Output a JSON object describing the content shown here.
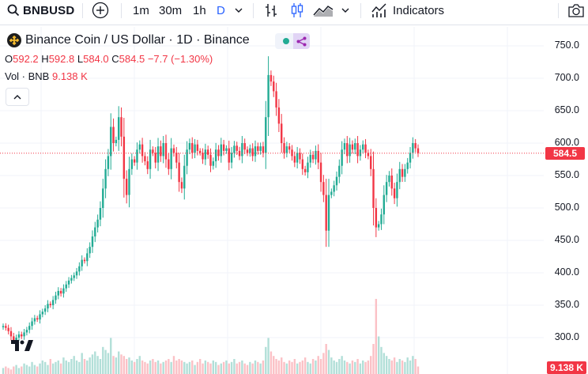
{
  "toolbar": {
    "symbol": "BNBUSD",
    "intervals": [
      "1m",
      "30m",
      "1h",
      "D"
    ],
    "active_interval": "D",
    "indicators_label": "Indicators"
  },
  "legend": {
    "title": "Binance Coin / US Dollar · 1D · Binance",
    "open_label": "O",
    "open": "592.2",
    "high_label": "H",
    "high": "592.8",
    "low_label": "L",
    "low": "584.0",
    "close_label": "C",
    "close": "584.5",
    "change": "−7.7 (−1.30%)",
    "vol_label": "Vol · BNB",
    "vol_value": "9.138 K"
  },
  "colors": {
    "up": "#22ab94",
    "down": "#f23645",
    "accent": "#2962ff",
    "grid": "#f0f3fa",
    "volume_up": "#b2dfd8",
    "volume_down": "#fbc1c6"
  },
  "chart_data": {
    "type": "candlestick",
    "title": "Binance Coin / US Dollar · 1D · Binance",
    "y_axis_labels": [
      "750.0",
      "700.0",
      "650.0",
      "600.0",
      "550.0",
      "500.0",
      "450.0",
      "400.0",
      "350.0",
      "300.0"
    ],
    "y_axis_values": [
      750,
      700,
      650,
      600,
      550,
      500,
      450,
      400,
      350,
      300
    ],
    "ylim": [
      290,
      760
    ],
    "last_price": 584.5,
    "last_price_label": "584.5",
    "last_volume_label": "9.138 K",
    "closes": [
      318,
      315,
      310,
      302,
      296,
      300,
      305,
      302,
      308,
      312,
      318,
      325,
      330,
      328,
      336,
      340,
      345,
      352,
      350,
      358,
      365,
      372,
      368,
      376,
      382,
      388,
      392,
      396,
      402,
      410,
      420,
      418,
      430,
      440,
      456,
      470,
      482,
      500,
      530,
      560,
      580,
      625,
      600,
      605,
      640,
      610,
      545,
      520,
      560,
      575,
      570,
      590,
      598,
      580,
      572,
      560,
      590,
      585,
      570,
      595,
      580,
      600,
      575,
      560,
      592,
      585,
      570,
      540,
      530,
      565,
      590,
      600,
      585,
      598,
      588,
      585,
      575,
      590,
      582,
      565,
      572,
      590,
      580,
      598,
      588,
      592,
      570,
      585,
      596,
      588,
      580,
      600,
      590,
      585,
      592,
      580,
      595,
      588,
      595,
      585,
      640,
      705,
      695,
      680,
      655,
      630,
      600,
      585,
      595,
      590,
      580,
      570,
      585,
      575,
      560,
      555,
      570,
      582,
      575,
      588,
      570,
      540,
      520,
      465,
      520,
      525,
      535,
      548,
      565,
      590,
      600,
      580,
      598,
      590,
      600,
      580,
      590,
      598,
      585,
      580,
      560,
      500,
      470,
      475,
      490,
      520,
      540,
      550,
      530,
      515,
      540,
      560,
      548,
      560,
      570,
      585,
      600,
      592,
      584.5
    ],
    "volumes": [
      4,
      5,
      4,
      3,
      5,
      6,
      4,
      5,
      7,
      6,
      5,
      8,
      6,
      5,
      7,
      9,
      8,
      6,
      10,
      7,
      8,
      9,
      7,
      11,
      9,
      8,
      10,
      12,
      9,
      8,
      14,
      10,
      9,
      11,
      13,
      15,
      12,
      10,
      18,
      16,
      14,
      24,
      12,
      11,
      15,
      13,
      12,
      10,
      11,
      9,
      8,
      10,
      12,
      9,
      8,
      7,
      9,
      10,
      8,
      9,
      7,
      8,
      9,
      10,
      8,
      12,
      9,
      10,
      9,
      8,
      7,
      8,
      9,
      6,
      8,
      10,
      7,
      9,
      8,
      7,
      9,
      8,
      6,
      7,
      8,
      9,
      7,
      8,
      10,
      7,
      8,
      9,
      7,
      6,
      8,
      7,
      9,
      8,
      7,
      9,
      18,
      24,
      15,
      12,
      10,
      9,
      11,
      8,
      7,
      9,
      8,
      10,
      7,
      8,
      9,
      11,
      8,
      7,
      10,
      9,
      12,
      10,
      14,
      20,
      16,
      11,
      9,
      8,
      10,
      12,
      9,
      8,
      7,
      9,
      8,
      10,
      7,
      9,
      8,
      9,
      12,
      20,
      50,
      25,
      18,
      14,
      12,
      10,
      9,
      11,
      8,
      10,
      9,
      8,
      11,
      9,
      12,
      10,
      5
    ]
  }
}
